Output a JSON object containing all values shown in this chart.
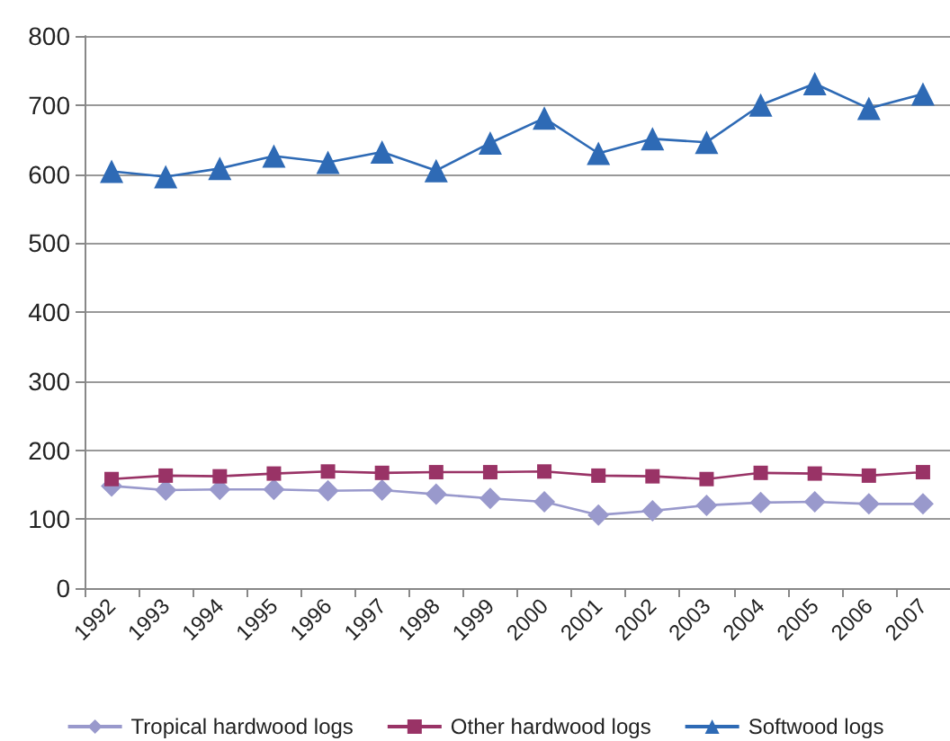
{
  "chart_data": {
    "type": "line",
    "categories": [
      "1992",
      "1993",
      "1994",
      "1995",
      "1996",
      "1997",
      "1998",
      "1999",
      "2000",
      "2001",
      "2002",
      "2003",
      "2004",
      "2005",
      "2006",
      "2007"
    ],
    "series": [
      {
        "name": "Tropical hardwood logs",
        "color": "#9999cc",
        "marker": "diamond",
        "values": [
          148,
          142,
          143,
          143,
          141,
          142,
          136,
          130,
          125,
          106,
          112,
          120,
          124,
          125,
          122,
          122
        ]
      },
      {
        "name": "Other hardwood logs",
        "color": "#993366",
        "marker": "square",
        "values": [
          158,
          163,
          162,
          166,
          169,
          167,
          168,
          168,
          169,
          163,
          162,
          158,
          167,
          166,
          163,
          168
        ]
      },
      {
        "name": "Softwood logs",
        "color": "#2e6ab5",
        "marker": "triangle",
        "values": [
          604,
          596,
          608,
          626,
          617,
          632,
          605,
          645,
          681,
          630,
          651,
          646,
          700,
          731,
          695,
          716
        ]
      }
    ],
    "ylim": [
      0,
      800
    ],
    "yticks": [
      0,
      100,
      200,
      300,
      400,
      500,
      600,
      700,
      800
    ],
    "grid": "y",
    "legend": "bottom"
  }
}
